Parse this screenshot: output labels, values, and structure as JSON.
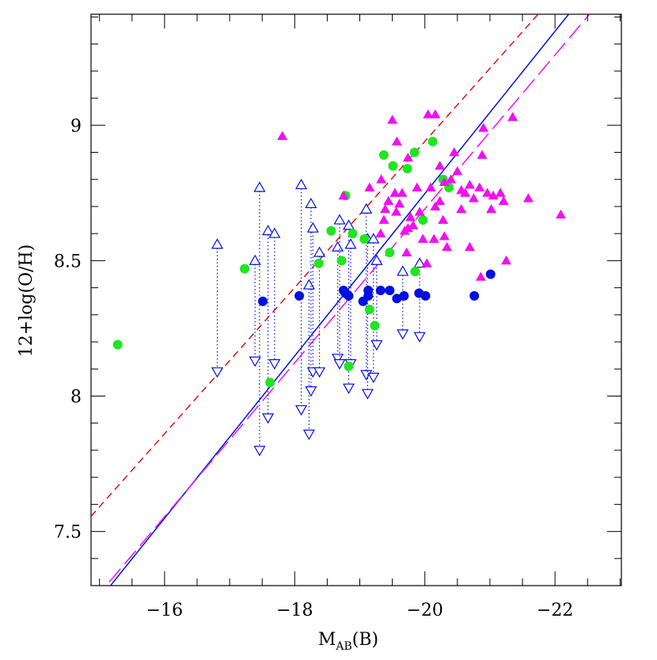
{
  "chart_data": {
    "type": "scatter",
    "y_label": "12+log(O/H)",
    "x_label": {
      "main": "M",
      "sub": "AB",
      "tail": "(B)"
    },
    "xlim": [
      -14.87,
      -23.02
    ],
    "ylim": [
      7.3,
      9.41
    ],
    "xticks": [
      {
        "value": -16,
        "label": "−16"
      },
      {
        "value": -18,
        "label": "−18"
      },
      {
        "value": -20,
        "label": "−20"
      },
      {
        "value": -22,
        "label": "−22"
      }
    ],
    "yticks": [
      7.5,
      8,
      8.5,
      9
    ],
    "xminorticks": [
      -15,
      -15.5,
      -16.5,
      -17,
      -17.5,
      -18.5,
      -19,
      -19.5,
      -20.5,
      -21,
      -21.5,
      -22.5,
      -23
    ],
    "yminorticks": [
      7.3,
      7.4,
      7.6,
      7.7,
      7.8,
      7.9,
      8.1,
      8.2,
      8.3,
      8.4,
      8.6,
      8.7,
      8.8,
      8.9,
      9.1,
      9.2,
      9.3,
      9.4
    ],
    "series": [
      {
        "marker": "circle",
        "color": "#1fe61f",
        "x": [
          -15.28,
          -17.23,
          -17.62,
          -18.37,
          -18.56,
          -18.72,
          -18.78,
          -18.83,
          -18.89,
          -19.07,
          -19.15,
          -19.23,
          -19.37,
          -19.51,
          -19.73,
          -19.46,
          -19.85,
          -19.84,
          -19.97,
          -20.12,
          -20.28,
          -20.37
        ],
        "y": [
          8.19,
          8.47,
          8.05,
          8.49,
          8.61,
          8.5,
          8.74,
          8.11,
          8.6,
          8.58,
          8.32,
          8.26,
          8.89,
          8.85,
          8.84,
          8.53,
          8.46,
          8.9,
          8.65,
          8.94,
          8.8,
          8.77
        ]
      },
      {
        "marker": "circle",
        "color": "#0010e0",
        "x": [
          -17.51,
          -18.07,
          -18.75,
          -18.78,
          -18.83,
          -19.05,
          -19.13,
          -19.13,
          -19.32,
          -19.46,
          -19.57,
          -19.68,
          -19.91,
          -20.01,
          -20.76,
          -21.01
        ],
        "y": [
          8.35,
          8.37,
          8.39,
          8.38,
          8.37,
          8.35,
          8.39,
          8.37,
          8.39,
          8.39,
          8.36,
          8.37,
          8.38,
          8.37,
          8.37,
          8.45
        ]
      },
      {
        "marker": "triangle",
        "color": "#f010f0",
        "x": [
          -17.81,
          -18.75,
          -19.15,
          -19.33,
          -19.5,
          -19.57,
          -19.74,
          -20.05,
          -20.16,
          -20.23,
          -20.3,
          -20.4,
          -20.45,
          -20.5,
          -20.56,
          -20.62,
          -20.69,
          -20.75,
          -20.84,
          -20.88,
          -20.9,
          -20.96,
          -21.02,
          -21.05,
          -21.16,
          -21.21,
          -21.25,
          -21.35,
          -21.59,
          -22.09,
          -19.32,
          -19.37,
          -19.39,
          -19.44,
          -19.54,
          -19.56,
          -19.61,
          -19.65,
          -19.69,
          -19.72,
          -19.74,
          -19.78,
          -19.82,
          -19.88,
          -19.92,
          -19.97,
          -20.03,
          -20.09,
          -20.16,
          -20.23,
          -20.28,
          -20.3,
          -20.34,
          -20.56,
          -20.69,
          -20.86,
          -20.14
        ],
        "y": [
          8.96,
          8.74,
          8.77,
          8.8,
          9.02,
          8.94,
          8.88,
          9.04,
          9.04,
          8.85,
          8.79,
          8.8,
          8.9,
          8.83,
          8.76,
          8.75,
          8.78,
          8.73,
          8.77,
          8.89,
          8.99,
          8.75,
          8.69,
          8.74,
          8.75,
          8.72,
          8.5,
          9.03,
          8.73,
          8.67,
          8.6,
          8.65,
          8.69,
          8.72,
          8.75,
          8.68,
          8.71,
          8.75,
          8.61,
          8.53,
          8.62,
          8.66,
          8.63,
          8.77,
          8.68,
          8.58,
          8.49,
          8.77,
          8.7,
          8.72,
          8.65,
          8.59,
          8.55,
          8.69,
          8.55,
          8.44,
          8.58
        ]
      }
    ],
    "limits": {
      "color": "#0010e0",
      "x": [
        -16.81,
        -17.39,
        -17.46,
        -17.59,
        -17.69,
        -18.1,
        -18.22,
        -18.25,
        -18.28,
        -18.38,
        -18.66,
        -18.69,
        -18.83,
        -18.86,
        -19.1,
        -19.12,
        -19.21,
        -19.26,
        -19.66,
        -19.92
      ],
      "upper": [
        8.56,
        8.5,
        8.77,
        8.61,
        8.6,
        8.78,
        8.41,
        8.71,
        8.62,
        8.53,
        8.55,
        8.65,
        8.63,
        8.56,
        8.69,
        8.58,
        8.58,
        8.5,
        8.46,
        8.49
      ],
      "lower": [
        8.09,
        8.13,
        7.8,
        7.92,
        8.12,
        7.95,
        7.86,
        8.02,
        8.09,
        8.09,
        8.14,
        8.12,
        8.03,
        8.12,
        8.08,
        8.01,
        8.07,
        8.19,
        8.23,
        8.22
      ]
    },
    "lines": [
      {
        "color": "#e01010",
        "style": "dashed",
        "x": [
          -14.87,
          -21.74
        ],
        "y": [
          7.556,
          9.41
        ]
      },
      {
        "color": "#0010e0",
        "style": "solid",
        "x": [
          -15.17,
          -22.21
        ],
        "y": [
          7.3,
          9.41
        ]
      },
      {
        "color": "#f010f0",
        "style": "longdash",
        "x": [
          -15.15,
          -22.53
        ],
        "y": [
          7.313,
          9.41
        ]
      }
    ]
  }
}
